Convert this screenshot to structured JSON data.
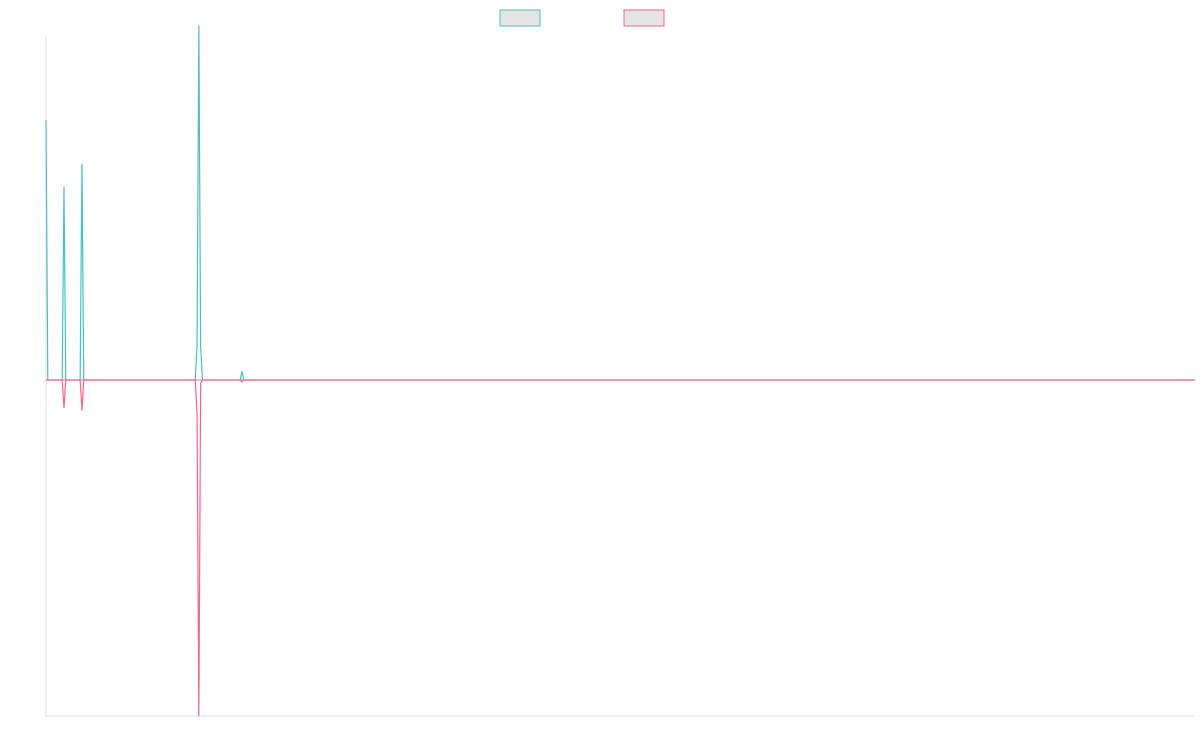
{
  "chart_data": {
    "type": "line",
    "title": "",
    "xlabel": "",
    "ylabel": "",
    "grid": false,
    "legend_position": "top-center",
    "x_count": 640,
    "ylim": [
      -1,
      1
    ],
    "series": [
      {
        "key": "series-a",
        "name": "",
        "color": "#4bc0c0",
        "legend_fill": "#e5e5e5",
        "baseline": 0,
        "points": [
          {
            "x": 0,
            "y": 0.755
          },
          {
            "x": 1,
            "y": 0
          },
          {
            "x": 9,
            "y": 0
          },
          {
            "x": 10,
            "y": 0.56
          },
          {
            "x": 11,
            "y": 0
          },
          {
            "x": 19,
            "y": 0
          },
          {
            "x": 20,
            "y": 0.628
          },
          {
            "x": 21,
            "y": 0
          },
          {
            "x": 83,
            "y": 0
          },
          {
            "x": 84,
            "y": 0.1
          },
          {
            "x": 85,
            "y": 1.03
          },
          {
            "x": 86,
            "y": 0.1
          },
          {
            "x": 87,
            "y": 0
          },
          {
            "x": 108,
            "y": 0
          },
          {
            "x": 109,
            "y": 0.025
          },
          {
            "x": 110,
            "y": 0
          },
          {
            "x": 639,
            "y": 0
          }
        ]
      },
      {
        "key": "series-b",
        "name": "",
        "color": "#ff6384",
        "legend_fill": "#e5e5e5",
        "baseline": 0,
        "points": [
          {
            "x": 0,
            "y": 0
          },
          {
            "x": 9,
            "y": 0
          },
          {
            "x": 10,
            "y": -0.082
          },
          {
            "x": 11,
            "y": 0
          },
          {
            "x": 19,
            "y": 0
          },
          {
            "x": 20,
            "y": -0.09
          },
          {
            "x": 21,
            "y": 0
          },
          {
            "x": 83,
            "y": 0
          },
          {
            "x": 84,
            "y": -0.1
          },
          {
            "x": 85,
            "y": -1.0
          },
          {
            "x": 86,
            "y": -0.01
          },
          {
            "x": 87,
            "y": 0
          },
          {
            "x": 108,
            "y": 0
          },
          {
            "x": 109,
            "y": -0.005
          },
          {
            "x": 110,
            "y": 0
          },
          {
            "x": 639,
            "y": 0
          }
        ]
      }
    ],
    "colors": {
      "axis": "#e0e0e0",
      "zero_line": "#9a9a9a"
    }
  }
}
